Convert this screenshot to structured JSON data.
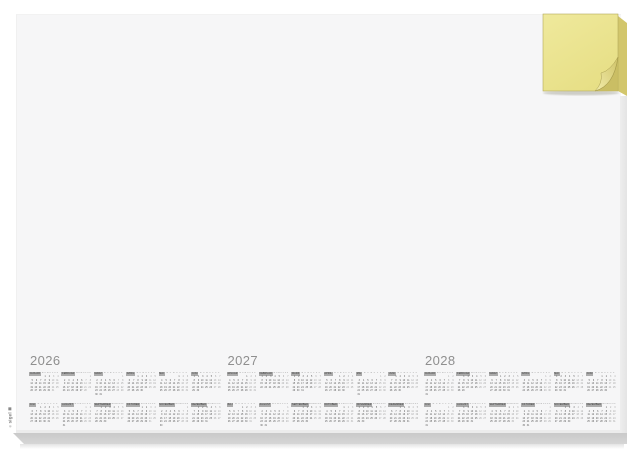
{
  "product": {
    "brand": "sigel",
    "registered": "®"
  },
  "calendar": {
    "years": [
      "2026",
      "2027",
      "2028"
    ],
    "month_names": [
      "JANUAR",
      "FEBRUAR",
      "MÄRZ",
      "APRIL",
      "MAI",
      "JUNI",
      "JULI",
      "AUGUST",
      "SEPTEMBER",
      "OKTOBER",
      "NOVEMBER",
      "DEZEMBER"
    ],
    "weekday_initials": [
      "M",
      "D",
      "M",
      "D",
      "F",
      "S",
      "S"
    ]
  },
  "colors": {
    "page_bg": "#ffffff",
    "pad_face": "#f6f6f7",
    "pad_sheet_edge": "#ececec",
    "pad_band": "#d6d6d6",
    "pad_band_dark": "#c9c9c9",
    "pad_right_strip": "#eeeeee",
    "year_text": "#8f8f8f",
    "month_header_bg": "#ababab",
    "month_header_text": "#3c3c3c",
    "day_text": "#555555",
    "weekend_text": "#a2a2a2",
    "note_face": "#e7df86",
    "note_face_light": "#efe99c",
    "note_side": "#d2c66c",
    "note_edge": "#b3a95b",
    "note_curl_light": "#f2ecaa",
    "note_curl_dark": "#cfc368"
  }
}
